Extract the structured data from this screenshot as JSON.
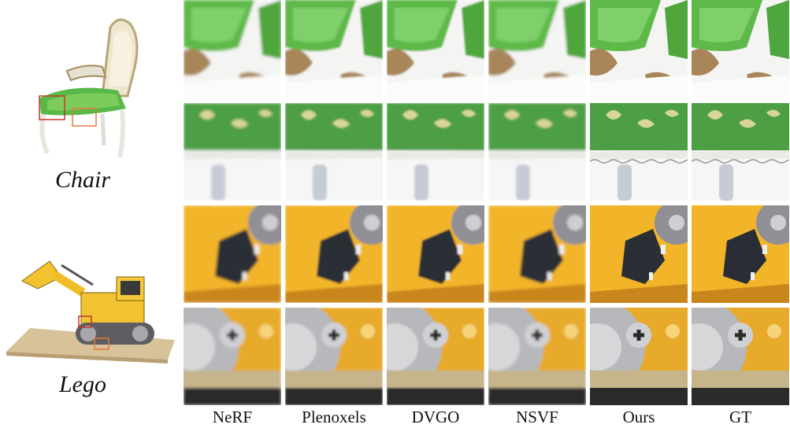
{
  "scenes": [
    {
      "id": "chair",
      "label": "Chair"
    },
    {
      "id": "lego",
      "label": "Lego"
    }
  ],
  "methods": [
    "NeRF",
    "Plenoxels",
    "DVGO",
    "NSVF",
    "Ours",
    "GT"
  ],
  "rows": [
    {
      "scene": "chair",
      "crop": "armrest-detail",
      "palette": {
        "bg": "#f4f4f2",
        "main": "#5fb94a",
        "accent": "#a8865a"
      }
    },
    {
      "scene": "chair",
      "crop": "seat-pattern",
      "palette": {
        "bg": "#f6f6f6",
        "main": "#4e9f44",
        "accent": "#d9d59a"
      }
    },
    {
      "scene": "lego",
      "crop": "cab-detail",
      "palette": {
        "bg": "#e0a62c",
        "main": "#f2b52a",
        "accent": "#2a2d35"
      }
    },
    {
      "scene": "lego",
      "crop": "gear-detail",
      "palette": {
        "bg": "#e7aa2a",
        "main": "#b7b8bb",
        "accent": "#2b2b2b"
      }
    }
  ],
  "colors": {
    "crop_red": "#c0392b",
    "crop_orange": "#e07b3a"
  }
}
